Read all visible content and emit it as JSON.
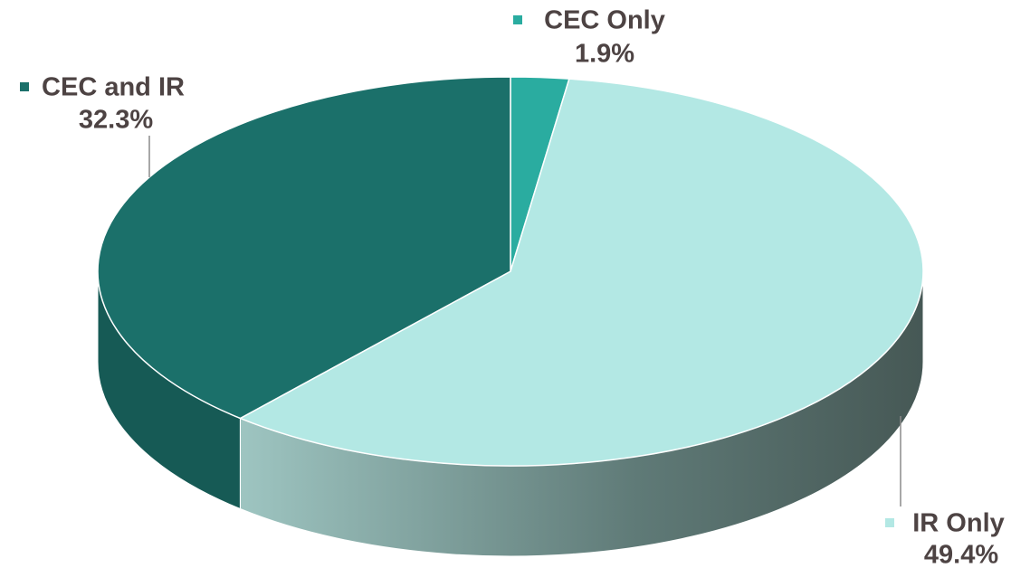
{
  "chart_data": {
    "type": "pie",
    "categories": [
      "CEC Only",
      "IR Only",
      "CEC and IR"
    ],
    "values": [
      1.9,
      49.4,
      32.3
    ],
    "value_labels": [
      "1.9%",
      "49.4%",
      "32.3%"
    ],
    "colors": [
      "#2aaca0",
      "#b3e8e4",
      "#1b706a"
    ]
  }
}
